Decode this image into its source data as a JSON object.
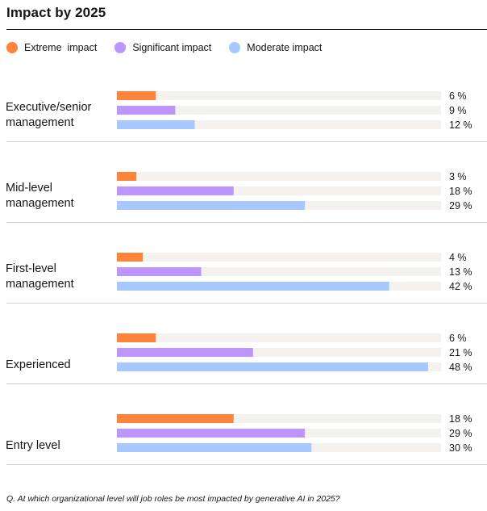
{
  "colors": {
    "extreme": "#ff8338",
    "significant": "#be95ff",
    "moderate": "#a6c8ff",
    "track": "#f4f1ef",
    "divider": "#d0d0d0"
  },
  "title": "Impact by 2025",
  "footnote": "Q. At which organizational level will job roles be most impacted by generative AI in 2025?",
  "chart_data": {
    "type": "bar",
    "orientation": "horizontal",
    "title": "Impact by 2025",
    "categories": [
      [
        "Executive/senior",
        "management"
      ],
      [
        "Mid-level",
        "management"
      ],
      [
        "First-level",
        "management"
      ],
      [
        "Experienced"
      ],
      [
        "Entry level"
      ]
    ],
    "series": [
      {
        "name": "Extreme  impact",
        "color": "#ff8338",
        "values": [
          6,
          3,
          4,
          6,
          18
        ]
      },
      {
        "name": "Significant impact",
        "color": "#be95ff",
        "values": [
          9,
          18,
          13,
          21,
          29
        ]
      },
      {
        "name": "Moderate impact",
        "color": "#a6c8ff",
        "values": [
          12,
          29,
          42,
          48,
          30
        ]
      }
    ],
    "value_suffix": " %",
    "xlim": [
      0,
      50
    ],
    "legend_position": "top-left",
    "grid": false
  }
}
